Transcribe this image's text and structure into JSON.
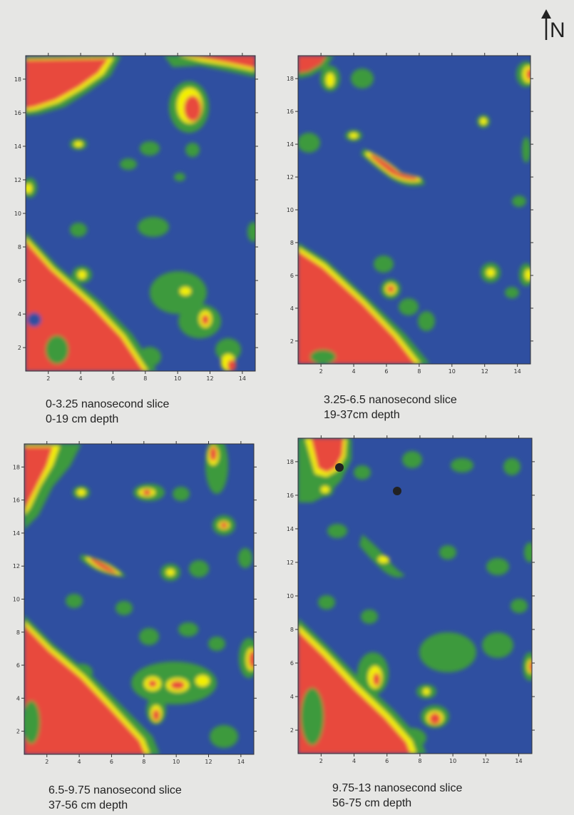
{
  "north_arrow": {
    "label": "N"
  },
  "colors": {
    "background": "#2f4fa0",
    "green": "#3c9a3c",
    "yellow": "#f4f000",
    "red": "#e8483e"
  },
  "panels": [
    {
      "slice": "0-3.25 nanosecond slice",
      "depth": "0-19 cm depth",
      "x_ticks": [
        "2",
        "4",
        "6",
        "8",
        "10",
        "12",
        "14"
      ],
      "y_ticks": [
        "2",
        "4",
        "6",
        "8",
        "10",
        "12",
        "14",
        "16",
        "18"
      ]
    },
    {
      "slice": "3.25-6.5 nanosecond slice",
      "depth": "19-37cm depth",
      "x_ticks": [
        "2",
        "4",
        "6",
        "8",
        "10",
        "12",
        "14"
      ],
      "y_ticks": [
        "2",
        "4",
        "6",
        "8",
        "10",
        "12",
        "14",
        "16",
        "18"
      ]
    },
    {
      "slice": "6.5-9.75 nanosecond slice",
      "depth": "37-56 cm depth",
      "x_ticks": [
        "2",
        "4",
        "6",
        "8",
        "10",
        "12",
        "14"
      ],
      "y_ticks": [
        "2",
        "4",
        "6",
        "8",
        "10",
        "12",
        "14",
        "16",
        "18"
      ]
    },
    {
      "slice": "9.75-13 nanosecond slice",
      "depth": "56-75 cm depth",
      "x_ticks": [
        "2",
        "4",
        "6",
        "8",
        "10",
        "12",
        "14"
      ],
      "y_ticks": [
        "2",
        "4",
        "6",
        "8",
        "10",
        "12",
        "14",
        "16",
        "18"
      ]
    }
  ]
}
